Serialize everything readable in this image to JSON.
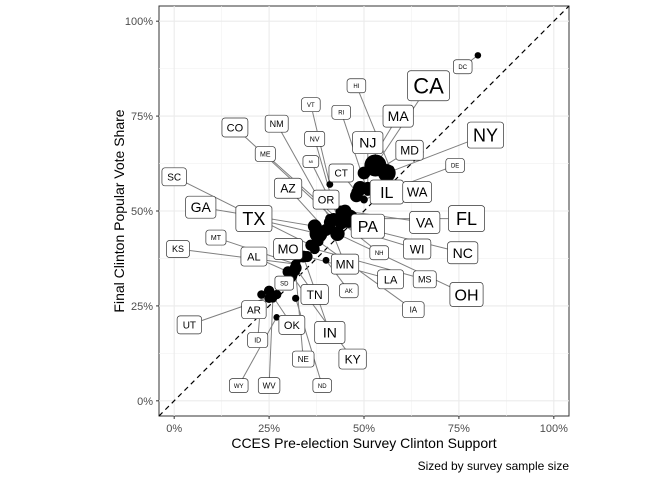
{
  "chart_data": {
    "type": "scatter",
    "xlabel": "CCES Pre-election Survey Clinton Support",
    "ylabel": "Final Clinton Popular Vote Share",
    "caption": "Sized by survey sample size",
    "xlim": [
      -0.04,
      1.04
    ],
    "ylim": [
      -0.04,
      1.04
    ],
    "x_ticks": [
      {
        "value": 0,
        "label": "0%"
      },
      {
        "value": 0.25,
        "label": "25%"
      },
      {
        "value": 0.5,
        "label": "50%"
      },
      {
        "value": 0.75,
        "label": "75%"
      },
      {
        "value": 1,
        "label": "100%"
      }
    ],
    "y_ticks": [
      {
        "value": 0,
        "label": "0%"
      },
      {
        "value": 0.25,
        "label": "25%"
      },
      {
        "value": 0.5,
        "label": "50%"
      },
      {
        "value": 0.75,
        "label": "75%"
      },
      {
        "value": 1,
        "label": "100%"
      }
    ],
    "reference_line": {
      "type": "y=x",
      "style": "dashed"
    },
    "grid": true,
    "points": [
      {
        "label": "CA",
        "x": 0.53,
        "y": 0.62,
        "size": 1.0
      },
      {
        "label": "NY",
        "x": 0.56,
        "y": 0.6,
        "size": 0.75
      },
      {
        "label": "TX",
        "x": 0.38,
        "y": 0.44,
        "size": 0.75
      },
      {
        "label": "FL",
        "x": 0.46,
        "y": 0.48,
        "size": 0.8
      },
      {
        "label": "PA",
        "x": 0.44,
        "y": 0.48,
        "size": 0.6
      },
      {
        "label": "OH",
        "x": 0.43,
        "y": 0.44,
        "size": 0.55
      },
      {
        "label": "IL",
        "x": 0.49,
        "y": 0.56,
        "size": 0.55
      },
      {
        "label": "NC",
        "x": 0.44,
        "y": 0.47,
        "size": 0.5
      },
      {
        "label": "GA",
        "x": 0.37,
        "y": 0.46,
        "size": 0.5
      },
      {
        "label": "MI",
        "x": 0.44,
        "y": 0.47,
        "size": 0.5
      },
      {
        "label": "NJ",
        "x": 0.51,
        "y": 0.56,
        "size": 0.45
      },
      {
        "label": "VA",
        "x": 0.45,
        "y": 0.5,
        "size": 0.45
      },
      {
        "label": "WA",
        "x": 0.48,
        "y": 0.54,
        "size": 0.45
      },
      {
        "label": "MA",
        "x": 0.5,
        "y": 0.6,
        "size": 0.45
      },
      {
        "label": "AZ",
        "x": 0.4,
        "y": 0.45,
        "size": 0.4
      },
      {
        "label": "TN",
        "x": 0.32,
        "y": 0.35,
        "size": 0.4
      },
      {
        "label": "IN",
        "x": 0.34,
        "y": 0.38,
        "size": 0.4
      },
      {
        "label": "MO",
        "x": 0.33,
        "y": 0.38,
        "size": 0.4
      },
      {
        "label": "MD",
        "x": 0.54,
        "y": 0.61,
        "size": 0.4
      },
      {
        "label": "WI",
        "x": 0.41,
        "y": 0.47,
        "size": 0.4
      },
      {
        "label": "MN",
        "x": 0.41,
        "y": 0.46,
        "size": 0.35
      },
      {
        "label": "CO",
        "x": 0.42,
        "y": 0.48,
        "size": 0.35
      },
      {
        "label": "SC",
        "x": 0.36,
        "y": 0.41,
        "size": 0.35
      },
      {
        "label": "AL",
        "x": 0.3,
        "y": 0.34,
        "size": 0.35
      },
      {
        "label": "LA",
        "x": 0.35,
        "y": 0.38,
        "size": 0.35
      },
      {
        "label": "KY",
        "x": 0.31,
        "y": 0.33,
        "size": 0.35
      },
      {
        "label": "OR",
        "x": 0.44,
        "y": 0.5,
        "size": 0.35
      },
      {
        "label": "OK",
        "x": 0.25,
        "y": 0.29,
        "size": 0.3
      },
      {
        "label": "CT",
        "x": 0.48,
        "y": 0.55,
        "size": 0.3
      },
      {
        "label": "IA",
        "x": 0.38,
        "y": 0.42,
        "size": 0.3
      },
      {
        "label": "MS",
        "x": 0.37,
        "y": 0.4,
        "size": 0.3
      },
      {
        "label": "AR",
        "x": 0.25,
        "y": 0.27,
        "size": 0.25
      },
      {
        "label": "KS",
        "x": 0.32,
        "y": 0.36,
        "size": 0.25
      },
      {
        "label": "UT",
        "x": 0.27,
        "y": 0.28,
        "size": 0.25
      },
      {
        "label": "NV",
        "x": 0.43,
        "y": 0.48,
        "size": 0.25
      },
      {
        "label": "NM",
        "x": 0.41,
        "y": 0.48,
        "size": 0.25
      },
      {
        "label": "NE",
        "x": 0.32,
        "y": 0.34,
        "size": 0.2
      },
      {
        "label": "WV",
        "x": 0.26,
        "y": 0.27,
        "size": 0.2
      },
      {
        "label": "ID",
        "x": 0.23,
        "y": 0.28,
        "size": 0.2
      },
      {
        "label": "HI",
        "x": 0.57,
        "y": 0.61,
        "size": 0.15
      },
      {
        "label": "NH",
        "x": 0.44,
        "y": 0.47,
        "size": 0.15
      },
      {
        "label": "ME",
        "x": 0.43,
        "y": 0.48,
        "size": 0.15
      },
      {
        "label": "RI",
        "x": 0.51,
        "y": 0.55,
        "size": 0.15
      },
      {
        "label": "MT",
        "x": 0.32,
        "y": 0.36,
        "size": 0.15
      },
      {
        "label": "DE",
        "x": 0.5,
        "y": 0.53,
        "size": 0.15
      },
      {
        "label": "SD",
        "x": 0.3,
        "y": 0.32,
        "size": 0.12
      },
      {
        "label": "ND",
        "x": 0.32,
        "y": 0.27,
        "size": 0.12
      },
      {
        "label": "AK",
        "x": 0.4,
        "y": 0.37,
        "size": 0.1
      },
      {
        "label": "VT",
        "x": 0.41,
        "y": 0.57,
        "size": 0.1
      },
      {
        "label": "WY",
        "x": 0.27,
        "y": 0.22,
        "size": 0.08
      },
      {
        "label": "DC",
        "x": 0.8,
        "y": 0.91,
        "size": 0.08
      }
    ],
    "labels": [
      {
        "state": "CA",
        "lx": 0.67,
        "ly": 0.83,
        "fs": 22
      },
      {
        "state": "DC",
        "lx": 0.76,
        "ly": 0.88,
        "fs": 6
      },
      {
        "state": "HI",
        "lx": 0.48,
        "ly": 0.83,
        "fs": 6
      },
      {
        "state": "MA",
        "lx": 0.59,
        "ly": 0.75,
        "fs": 14
      },
      {
        "state": "NY",
        "lx": 0.82,
        "ly": 0.7,
        "fs": 18
      },
      {
        "state": "RI",
        "lx": 0.44,
        "ly": 0.76,
        "fs": 6
      },
      {
        "state": "VT",
        "lx": 0.36,
        "ly": 0.78,
        "fs": 6
      },
      {
        "state": "NM",
        "lx": 0.27,
        "ly": 0.73,
        "fs": 9
      },
      {
        "state": "CO",
        "lx": 0.16,
        "ly": 0.72,
        "fs": 11
      },
      {
        "state": "NV",
        "lx": 0.37,
        "ly": 0.69,
        "fs": 7
      },
      {
        "state": "NJ",
        "lx": 0.51,
        "ly": 0.68,
        "fs": 14
      },
      {
        "state": "MD",
        "lx": 0.62,
        "ly": 0.66,
        "fs": 12
      },
      {
        "state": "ME",
        "lx": 0.24,
        "ly": 0.65,
        "fs": 7
      },
      {
        "state": "MI",
        "lx": 0.36,
        "ly": 0.63,
        "fs": 4
      },
      {
        "state": "DE",
        "lx": 0.74,
        "ly": 0.62,
        "fs": 6
      },
      {
        "state": "CT",
        "lx": 0.44,
        "ly": 0.6,
        "fs": 10
      },
      {
        "state": "SC",
        "lx": 0.0,
        "ly": 0.59,
        "fs": 10
      },
      {
        "state": "AZ",
        "lx": 0.3,
        "ly": 0.56,
        "fs": 12
      },
      {
        "state": "OR",
        "lx": 0.4,
        "ly": 0.53,
        "fs": 11
      },
      {
        "state": "IL",
        "lx": 0.56,
        "ly": 0.55,
        "fs": 16
      },
      {
        "state": "WA",
        "lx": 0.64,
        "ly": 0.55,
        "fs": 13
      },
      {
        "state": "GA",
        "lx": 0.07,
        "ly": 0.51,
        "fs": 14
      },
      {
        "state": "TX",
        "lx": 0.21,
        "ly": 0.48,
        "fs": 18
      },
      {
        "state": "FL",
        "lx": 0.77,
        "ly": 0.48,
        "fs": 18
      },
      {
        "state": "VA",
        "lx": 0.66,
        "ly": 0.47,
        "fs": 14
      },
      {
        "state": "PA",
        "lx": 0.51,
        "ly": 0.46,
        "fs": 16
      },
      {
        "state": "MT",
        "lx": 0.11,
        "ly": 0.43,
        "fs": 7
      },
      {
        "state": "KS",
        "lx": 0.01,
        "ly": 0.4,
        "fs": 9
      },
      {
        "state": "MO",
        "lx": 0.3,
        "ly": 0.4,
        "fs": 13
      },
      {
        "state": "WI",
        "lx": 0.64,
        "ly": 0.4,
        "fs": 12
      },
      {
        "state": "NC",
        "lx": 0.76,
        "ly": 0.39,
        "fs": 14
      },
      {
        "state": "NH",
        "lx": 0.54,
        "ly": 0.39,
        "fs": 6
      },
      {
        "state": "AL",
        "lx": 0.21,
        "ly": 0.38,
        "fs": 11
      },
      {
        "state": "MN",
        "lx": 0.45,
        "ly": 0.36,
        "fs": 12
      },
      {
        "state": "LA",
        "lx": 0.57,
        "ly": 0.32,
        "fs": 11
      },
      {
        "state": "MS",
        "lx": 0.66,
        "ly": 0.32,
        "fs": 9
      },
      {
        "state": "SD",
        "lx": 0.29,
        "ly": 0.31,
        "fs": 6
      },
      {
        "state": "AK",
        "lx": 0.46,
        "ly": 0.29,
        "fs": 6
      },
      {
        "state": "OH",
        "lx": 0.77,
        "ly": 0.28,
        "fs": 16
      },
      {
        "state": "TN",
        "lx": 0.37,
        "ly": 0.28,
        "fs": 12
      },
      {
        "state": "AR",
        "lx": 0.21,
        "ly": 0.24,
        "fs": 10
      },
      {
        "state": "IA",
        "lx": 0.63,
        "ly": 0.24,
        "fs": 8
      },
      {
        "state": "OK",
        "lx": 0.31,
        "ly": 0.2,
        "fs": 11
      },
      {
        "state": "UT",
        "lx": 0.04,
        "ly": 0.2,
        "fs": 10
      },
      {
        "state": "IN",
        "lx": 0.41,
        "ly": 0.18,
        "fs": 14
      },
      {
        "state": "ID",
        "lx": 0.22,
        "ly": 0.16,
        "fs": 7
      },
      {
        "state": "KY",
        "lx": 0.47,
        "ly": 0.11,
        "fs": 12
      },
      {
        "state": "NE",
        "lx": 0.34,
        "ly": 0.11,
        "fs": 8
      },
      {
        "state": "ND",
        "lx": 0.39,
        "ly": 0.04,
        "fs": 6
      },
      {
        "state": "WY",
        "lx": 0.17,
        "ly": 0.04,
        "fs": 6
      },
      {
        "state": "WV",
        "lx": 0.25,
        "ly": 0.04,
        "fs": 8
      }
    ]
  }
}
